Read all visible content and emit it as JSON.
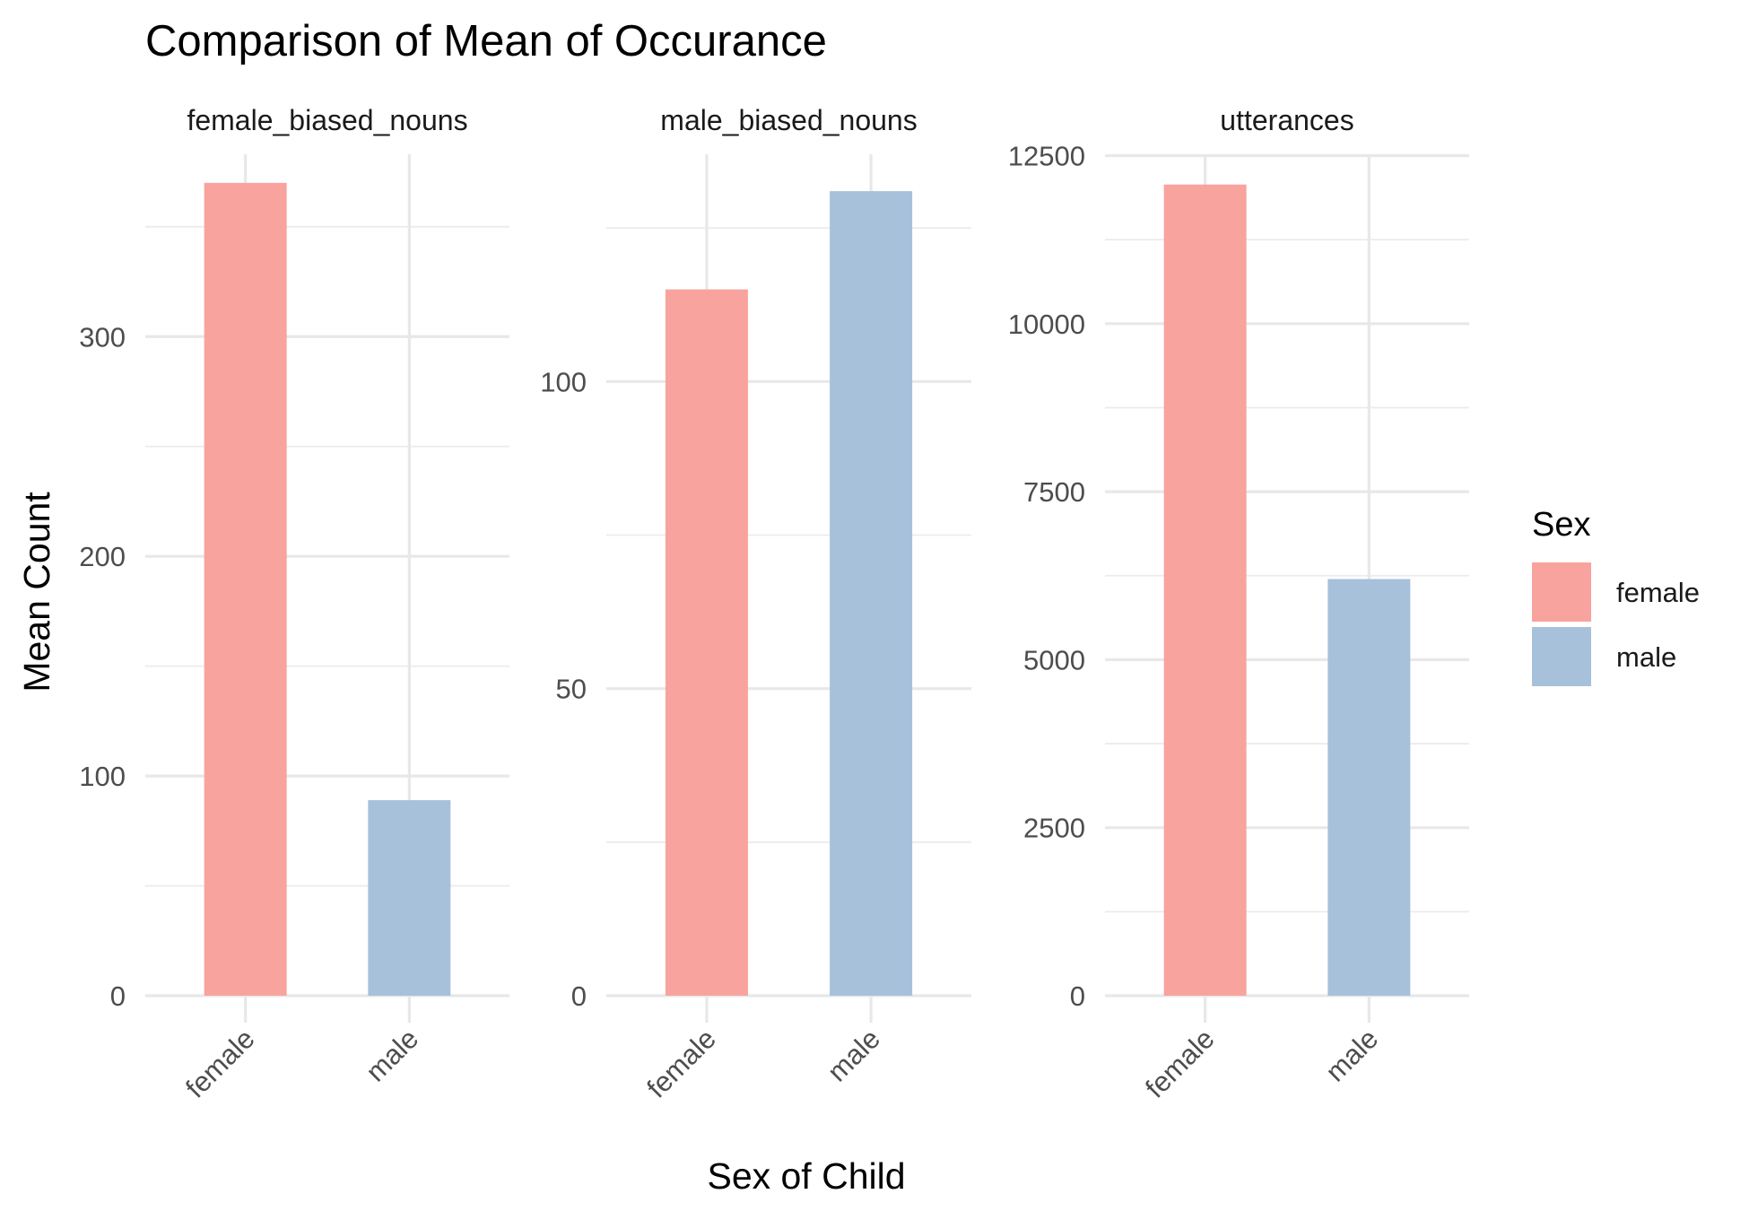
{
  "chart_data": {
    "type": "bar",
    "title": "Comparison of Mean of Occurance",
    "xlabel": "Sex of Child",
    "ylabel": "Mean Count",
    "categories": [
      "female",
      "male"
    ],
    "legend": {
      "title": "Sex",
      "placement": "right",
      "entries": [
        {
          "label": "female",
          "color": "#F8A39E"
        },
        {
          "label": "male",
          "color": "#A7C1DA"
        }
      ]
    },
    "grid": true,
    "panels": [
      {
        "name": "female_biased_nouns",
        "values": [
          370,
          89
        ],
        "ylim": [
          0,
          383
        ],
        "major_ticks": [
          0,
          100,
          200,
          300
        ],
        "tick_labels": [
          "0",
          "100",
          "200",
          "300"
        ],
        "minor_ticks": [
          50,
          150,
          250,
          350
        ]
      },
      {
        "name": "male_biased_nouns",
        "values": [
          115,
          131
        ],
        "ylim": [
          0,
          137
        ],
        "major_ticks": [
          0,
          50,
          100
        ],
        "tick_labels": [
          "0",
          "50",
          "100"
        ],
        "minor_ticks": [
          25,
          75,
          125
        ]
      },
      {
        "name": "utterances",
        "values": [
          12070,
          6200
        ],
        "ylim": [
          0,
          12520
        ],
        "major_ticks": [
          0,
          2500,
          5000,
          7500,
          10000,
          12500
        ],
        "tick_labels": [
          "0",
          "2500",
          "5000",
          "7500",
          "10000",
          "12500"
        ],
        "minor_ticks": [
          1250,
          3750,
          6250,
          8750,
          11250
        ]
      }
    ]
  }
}
